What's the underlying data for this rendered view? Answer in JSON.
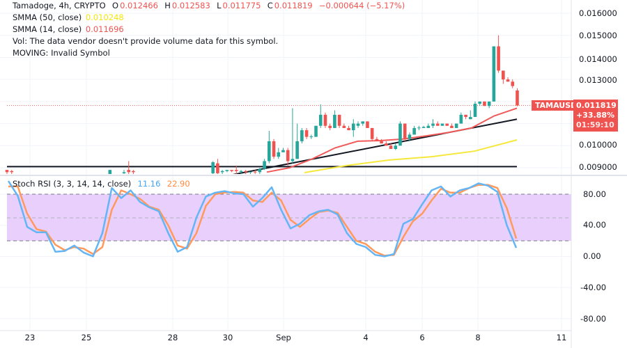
{
  "header": {
    "symbol_line": "Tamadoge, 4h, CRYPTO",
    "ohlc": [
      {
        "label": "O",
        "value": "0.012466"
      },
      {
        "label": "H",
        "value": "0.012583"
      },
      {
        "label": "L",
        "value": "0.011775"
      },
      {
        "label": "C",
        "value": "0.011819"
      }
    ],
    "change": "−0.000644 (−5.17%)",
    "smma50_label": "SMMA (50, close)",
    "smma50_value": "0.010248",
    "smma14_label": "SMMA (14, close)",
    "smma14_value": "0.011696",
    "vol_text": "Vol: The data vendor doesn't provide volume data for this symbol.",
    "moving_text": "MOVING: Invalid Symbol"
  },
  "price_axis": [
    "0.016000",
    "0.015000",
    "0.014000",
    "0.013000",
    "0.010000",
    "0.009000"
  ],
  "last_price": {
    "symbol": "TAMAUSD",
    "price": "0.011819",
    "change": "+33.88%",
    "countdown": "01:59:10"
  },
  "stoch_rsi": {
    "label": "Stoch RSI (3, 3, 14, 14, close)",
    "k_value": "11.16",
    "d_value": "22.90",
    "axis": [
      "80.00",
      "40.00",
      "0.00",
      "-40.00",
      "-80.00"
    ],
    "upper_band": 80,
    "middle_band": 50,
    "lower_band": 20,
    "k": [
      97,
      78,
      38,
      31,
      31,
      6,
      7,
      14,
      5,
      0,
      30,
      88,
      75,
      85,
      70,
      63,
      58,
      30,
      6,
      12,
      50,
      77,
      82,
      84,
      81,
      80,
      64,
      75,
      89,
      60,
      36,
      42,
      53,
      58,
      60,
      54,
      30,
      16,
      12,
      2,
      0,
      3,
      42,
      48,
      67,
      85,
      90,
      77,
      85,
      88,
      94,
      91,
      83,
      40,
      11
    ],
    "d": [
      90,
      90,
      55,
      35,
      32,
      15,
      8,
      12,
      10,
      3,
      12,
      60,
      85,
      80,
      74,
      64,
      60,
      40,
      14,
      10,
      30,
      65,
      80,
      82,
      83,
      82,
      72,
      70,
      82,
      72,
      47,
      38,
      48,
      57,
      59,
      56,
      38,
      20,
      16,
      6,
      1,
      2,
      25,
      45,
      55,
      72,
      87,
      82,
      82,
      88,
      92,
      92,
      88,
      62,
      23
    ]
  },
  "x_axis": [
    "23",
    "25",
    "28",
    "30",
    "Sep",
    "4",
    "6",
    "8",
    "11"
  ],
  "colors": {
    "up": "#26a69a",
    "down": "#ef5350",
    "smma14": "#f05a5a",
    "smma50": "#f5e83a",
    "k": "#64b5f6",
    "d": "#ff9a5c",
    "band": "#e8cffc"
  },
  "chart_data": {
    "type": "candlestick",
    "interval": "4h",
    "ylim": [
      0.0085,
      0.0165
    ],
    "support_level": 0.00905,
    "trendline": [
      0.00866,
      0.0112
    ],
    "smma14": [
      0.0088,
      0.009,
      0.0094,
      0.0099,
      0.0102,
      0.01023,
      0.0103,
      0.01044,
      0.0106,
      0.0108,
      0.01135,
      0.0117
    ],
    "smma50": [
      0.00878,
      0.0091,
      0.00935,
      0.0095,
      0.00975,
      0.01026
    ],
    "candles": [
      [
        0.0089,
        0.0089,
        0.0087,
        0.0088
      ],
      [
        0.00885,
        0.0089,
        0.0087,
        0.0088
      ],
      [
        0.0086,
        0.0086,
        0.0085,
        0.0086
      ],
      [
        0.0086,
        0.0086,
        0.0085,
        0.0086
      ],
      [
        0.0086,
        0.0086,
        0.0085,
        0.0086
      ],
      [
        0.0086,
        0.0086,
        0.0085,
        0.0086
      ],
      [
        0.0086,
        0.0086,
        0.0085,
        0.0086
      ],
      [
        0.0086,
        0.0086,
        0.0085,
        0.0086
      ],
      [
        0.0086,
        0.0086,
        0.0085,
        0.0086
      ],
      [
        0.0086,
        0.0086,
        0.0085,
        0.0086
      ],
      [
        0.0086,
        0.0086,
        0.0085,
        0.0086
      ],
      [
        0.0086,
        0.0086,
        0.0085,
        0.0086
      ],
      [
        0.0086,
        0.0086,
        0.0085,
        0.0086
      ],
      [
        0.0086,
        0.0086,
        0.0085,
        0.0086
      ],
      [
        0.0086,
        0.0086,
        0.0085,
        0.0086
      ],
      [
        0.0086,
        0.0086,
        0.0085,
        0.0086
      ],
      [
        0.0086,
        0.0086,
        0.0085,
        0.0086
      ],
      [
        0.0086,
        0.0086,
        0.0085,
        0.0086
      ],
      [
        0.0086,
        0.0086,
        0.0085,
        0.0086
      ],
      [
        0.0086,
        0.0086,
        0.0085,
        0.0086
      ],
      [
        0.0086,
        0.0086,
        0.0085,
        0.0086
      ],
      [
        0.0086,
        0.0086,
        0.0085,
        0.0086
      ],
      [
        0.0086,
        0.0089,
        0.0086,
        0.0089
      ],
      [
        0.0086,
        0.0086,
        0.0085,
        0.0086
      ],
      [
        0.0086,
        0.0086,
        0.0085,
        0.0086
      ],
      [
        0.00875,
        0.0089,
        0.0087,
        0.0088
      ],
      [
        0.0089,
        0.0093,
        0.0087,
        0.0088
      ],
      [
        0.00885,
        0.0089,
        0.0087,
        0.0088
      ],
      [
        0.0086,
        0.0086,
        0.0085,
        0.0086
      ],
      [
        0.0086,
        0.0086,
        0.0085,
        0.0086
      ],
      [
        0.0086,
        0.0086,
        0.0085,
        0.0086
      ],
      [
        0.0086,
        0.0086,
        0.0085,
        0.0086
      ],
      [
        0.0086,
        0.0086,
        0.0085,
        0.0086
      ],
      [
        0.0086,
        0.0086,
        0.0085,
        0.0086
      ],
      [
        0.0086,
        0.0086,
        0.0085,
        0.0086
      ],
      [
        0.0086,
        0.0086,
        0.0085,
        0.0086
      ],
      [
        0.0086,
        0.0086,
        0.0085,
        0.0086
      ],
      [
        0.0086,
        0.0086,
        0.0085,
        0.0086
      ],
      [
        0.0086,
        0.0086,
        0.0085,
        0.0086
      ],
      [
        0.0086,
        0.0086,
        0.0085,
        0.0086
      ],
      [
        0.0086,
        0.0086,
        0.0085,
        0.0086
      ],
      [
        0.0086,
        0.0086,
        0.0085,
        0.0086
      ],
      [
        0.0086,
        0.0086,
        0.0085,
        0.0086
      ],
      [
        0.0086,
        0.0086,
        0.0085,
        0.0086
      ],
      [
        0.00875,
        0.0093,
        0.0087,
        0.00925
      ],
      [
        0.0092,
        0.0094,
        0.0087,
        0.00875
      ],
      [
        0.0088,
        0.0089,
        0.0087,
        0.00885
      ],
      [
        0.00885,
        0.0089,
        0.0088,
        0.0089
      ],
      [
        0.0089,
        0.0089,
        0.0088,
        0.00885
      ],
      [
        0.0089,
        0.0091,
        0.0087,
        0.00885
      ],
      [
        0.0088,
        0.0089,
        0.0087,
        0.00885
      ],
      [
        0.00885,
        0.0089,
        0.0087,
        0.0088
      ],
      [
        0.0088,
        0.0088,
        0.0087,
        0.00882
      ],
      [
        0.00882,
        0.0089,
        0.0087,
        0.0088
      ],
      [
        0.0088,
        0.009,
        0.0087,
        0.00895
      ],
      [
        0.00895,
        0.0094,
        0.0089,
        0.0093
      ],
      [
        0.0093,
        0.01067,
        0.0092,
        0.0102
      ],
      [
        0.0102,
        0.0103,
        0.0094,
        0.0095
      ],
      [
        0.0095,
        0.0099,
        0.0094,
        0.0097
      ],
      [
        0.0097,
        0.0099,
        0.0097,
        0.0098
      ],
      [
        0.0098,
        0.0099,
        0.0091,
        0.0093
      ],
      [
        0.0093,
        0.0117,
        0.0092,
        0.0094
      ],
      [
        0.0094,
        0.011,
        0.0094,
        0.0102
      ],
      [
        0.0102,
        0.0108,
        0.0101,
        0.0107
      ],
      [
        0.0107,
        0.0108,
        0.0103,
        0.0104
      ],
      [
        0.0104,
        0.0105,
        0.0103,
        0.01042
      ],
      [
        0.0104,
        0.0109,
        0.0104,
        0.0109
      ],
      [
        0.0109,
        0.01187,
        0.0108,
        0.0114
      ],
      [
        0.0114,
        0.0115,
        0.0108,
        0.0109
      ],
      [
        0.0109,
        0.011,
        0.0107,
        0.0108
      ],
      [
        0.0108,
        0.0116,
        0.0108,
        0.0114
      ],
      [
        0.0114,
        0.0114,
        0.0108,
        0.0109
      ],
      [
        0.0109,
        0.011,
        0.0108,
        0.0108
      ],
      [
        0.0108,
        0.0109,
        0.0107,
        0.0107
      ],
      [
        0.0107,
        0.0112,
        0.0104,
        0.011
      ],
      [
        0.0109,
        0.0111,
        0.0108,
        0.011
      ],
      [
        0.011,
        0.0111,
        0.0109,
        0.0111
      ],
      [
        0.0111,
        0.0111,
        0.0108,
        0.0108
      ],
      [
        0.0108,
        0.0108,
        0.0102,
        0.0103
      ],
      [
        0.0103,
        0.0104,
        0.0102,
        0.0102
      ],
      [
        0.0102,
        0.0103,
        0.0101,
        0.0101
      ],
      [
        0.0101,
        0.0102,
        0.01,
        0.01
      ],
      [
        0.01,
        0.0101,
        0.0099,
        0.00985
      ],
      [
        0.00985,
        0.0101,
        0.0098,
        0.01
      ],
      [
        0.01,
        0.0111,
        0.01,
        0.011
      ],
      [
        0.011,
        0.011,
        0.0102,
        0.0103
      ],
      [
        0.0103,
        0.0106,
        0.0102,
        0.0105
      ],
      [
        0.0105,
        0.0109,
        0.0105,
        0.0108
      ],
      [
        0.0108,
        0.0109,
        0.0107,
        0.01082
      ],
      [
        0.0108,
        0.0109,
        0.0108,
        0.01085
      ],
      [
        0.0108,
        0.011,
        0.0108,
        0.0109
      ],
      [
        0.0109,
        0.0112,
        0.0108,
        0.011
      ],
      [
        0.011,
        0.0111,
        0.0109,
        0.0109
      ],
      [
        0.0109,
        0.011,
        0.0109,
        0.011
      ],
      [
        0.011,
        0.011,
        0.0109,
        0.0109
      ],
      [
        0.0109,
        0.011,
        0.0108,
        0.0108
      ],
      [
        0.0108,
        0.011,
        0.0108,
        0.011
      ],
      [
        0.011,
        0.0115,
        0.011,
        0.0114
      ],
      [
        0.0114,
        0.0114,
        0.0112,
        0.0113
      ],
      [
        0.0112,
        0.0116,
        0.0112,
        0.0113
      ],
      [
        0.0113,
        0.012,
        0.0113,
        0.0119
      ],
      [
        0.0119,
        0.012,
        0.0118,
        0.012
      ],
      [
        0.012,
        0.012,
        0.0118,
        0.0118
      ],
      [
        0.0118,
        0.012,
        0.0117,
        0.012
      ],
      [
        0.012,
        0.0145,
        0.012,
        0.0145
      ],
      [
        0.0145,
        0.015,
        0.0133,
        0.0134
      ],
      [
        0.0134,
        0.0134,
        0.0128,
        0.013
      ],
      [
        0.013,
        0.0131,
        0.0129,
        0.0129
      ],
      [
        0.0129,
        0.013,
        0.0126,
        0.0127
      ],
      [
        0.0125,
        0.0126,
        0.01178,
        0.011819
      ]
    ]
  }
}
